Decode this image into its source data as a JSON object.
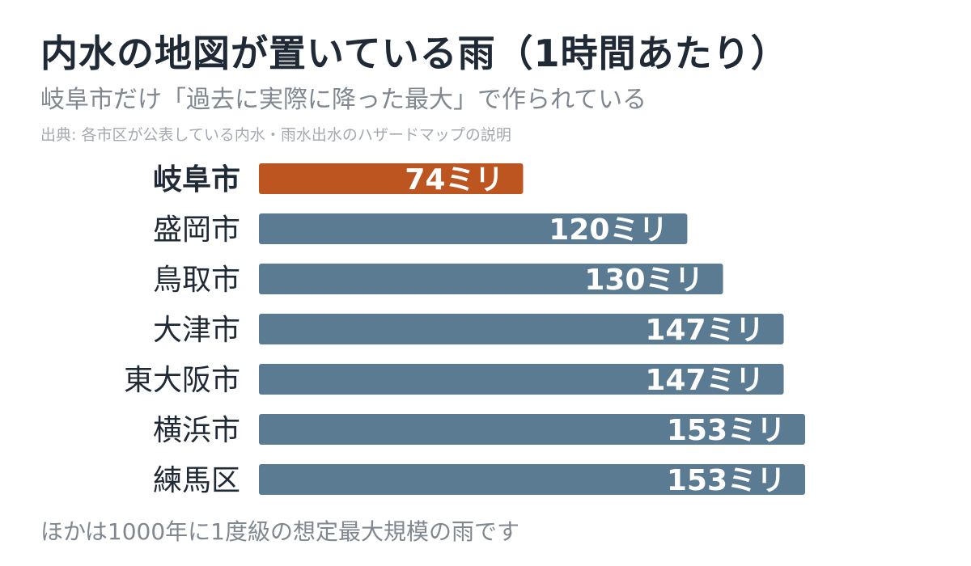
{
  "title": "内水の地図が置いている雨（1時間あたり）",
  "subtitle": "岐阜市だけ「過去に実際に降った最大」で作られている",
  "source": "出典: 各市区が公表している内水・雨水出水のハザードマップの説明",
  "footnote": "ほかは1000年に1度級の想定最大規模の雨です",
  "colors": {
    "highlight": "#bd5520",
    "default": "#5b7b93",
    "bar_label": "#ffffff",
    "category_label": "#1f2a36"
  },
  "chart_data": {
    "type": "bar",
    "orientation": "horizontal",
    "categories": [
      "岐阜市",
      "盛岡市",
      "鳥取市",
      "大津市",
      "東大阪市",
      "横浜市",
      "練馬区"
    ],
    "values": [
      74,
      120,
      130,
      147,
      147,
      153,
      153
    ],
    "value_labels": [
      "74ミリ",
      "120ミリ",
      "130ミリ",
      "147ミリ",
      "147ミリ",
      "153ミリ",
      "153ミリ"
    ],
    "highlight_index": 0,
    "unit": "ミリ",
    "xlim": [
      0,
      153
    ],
    "grid": false,
    "legend": "none"
  }
}
